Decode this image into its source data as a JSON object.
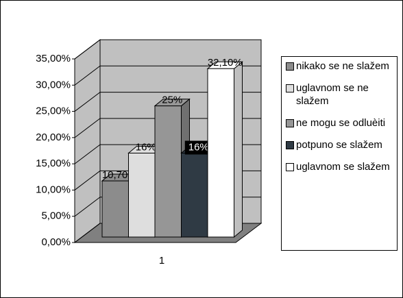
{
  "chart_data": {
    "type": "bar3d",
    "categories": [
      "1"
    ],
    "series": [
      {
        "name": "nikako se ne slažem",
        "color": "#8c8c8c",
        "values": [
          10.7
        ],
        "value_labels": [
          "10,70%"
        ]
      },
      {
        "name": "uglavnom se ne slažem",
        "color": "#dedede",
        "values": [
          16
        ],
        "value_labels": [
          "16%"
        ]
      },
      {
        "name": "ne mogu se odluèiti",
        "color": "#969696",
        "values": [
          25
        ],
        "value_labels": [
          "25%"
        ]
      },
      {
        "name": "potpuno se slažem",
        "color": "#2f3a44",
        "values": [
          16
        ],
        "value_labels": [
          "16%"
        ]
      },
      {
        "name": "uglavnom se slažem",
        "color": "#ffffff",
        "values": [
          32.1
        ],
        "value_labels": [
          "32,10%"
        ]
      }
    ],
    "ylim": [
      0,
      35
    ],
    "yticks": [
      {
        "value": 0,
        "label": "0,00%"
      },
      {
        "value": 5,
        "label": "5,00%"
      },
      {
        "value": 10,
        "label": "10,00%"
      },
      {
        "value": 15,
        "label": "15,00%"
      },
      {
        "value": 20,
        "label": "20,00%"
      },
      {
        "value": 25,
        "label": "25,00%"
      },
      {
        "value": 30,
        "label": "30,00%"
      },
      {
        "value": 35,
        "label": "35,00%"
      }
    ],
    "grid": true,
    "legend": "right"
  }
}
